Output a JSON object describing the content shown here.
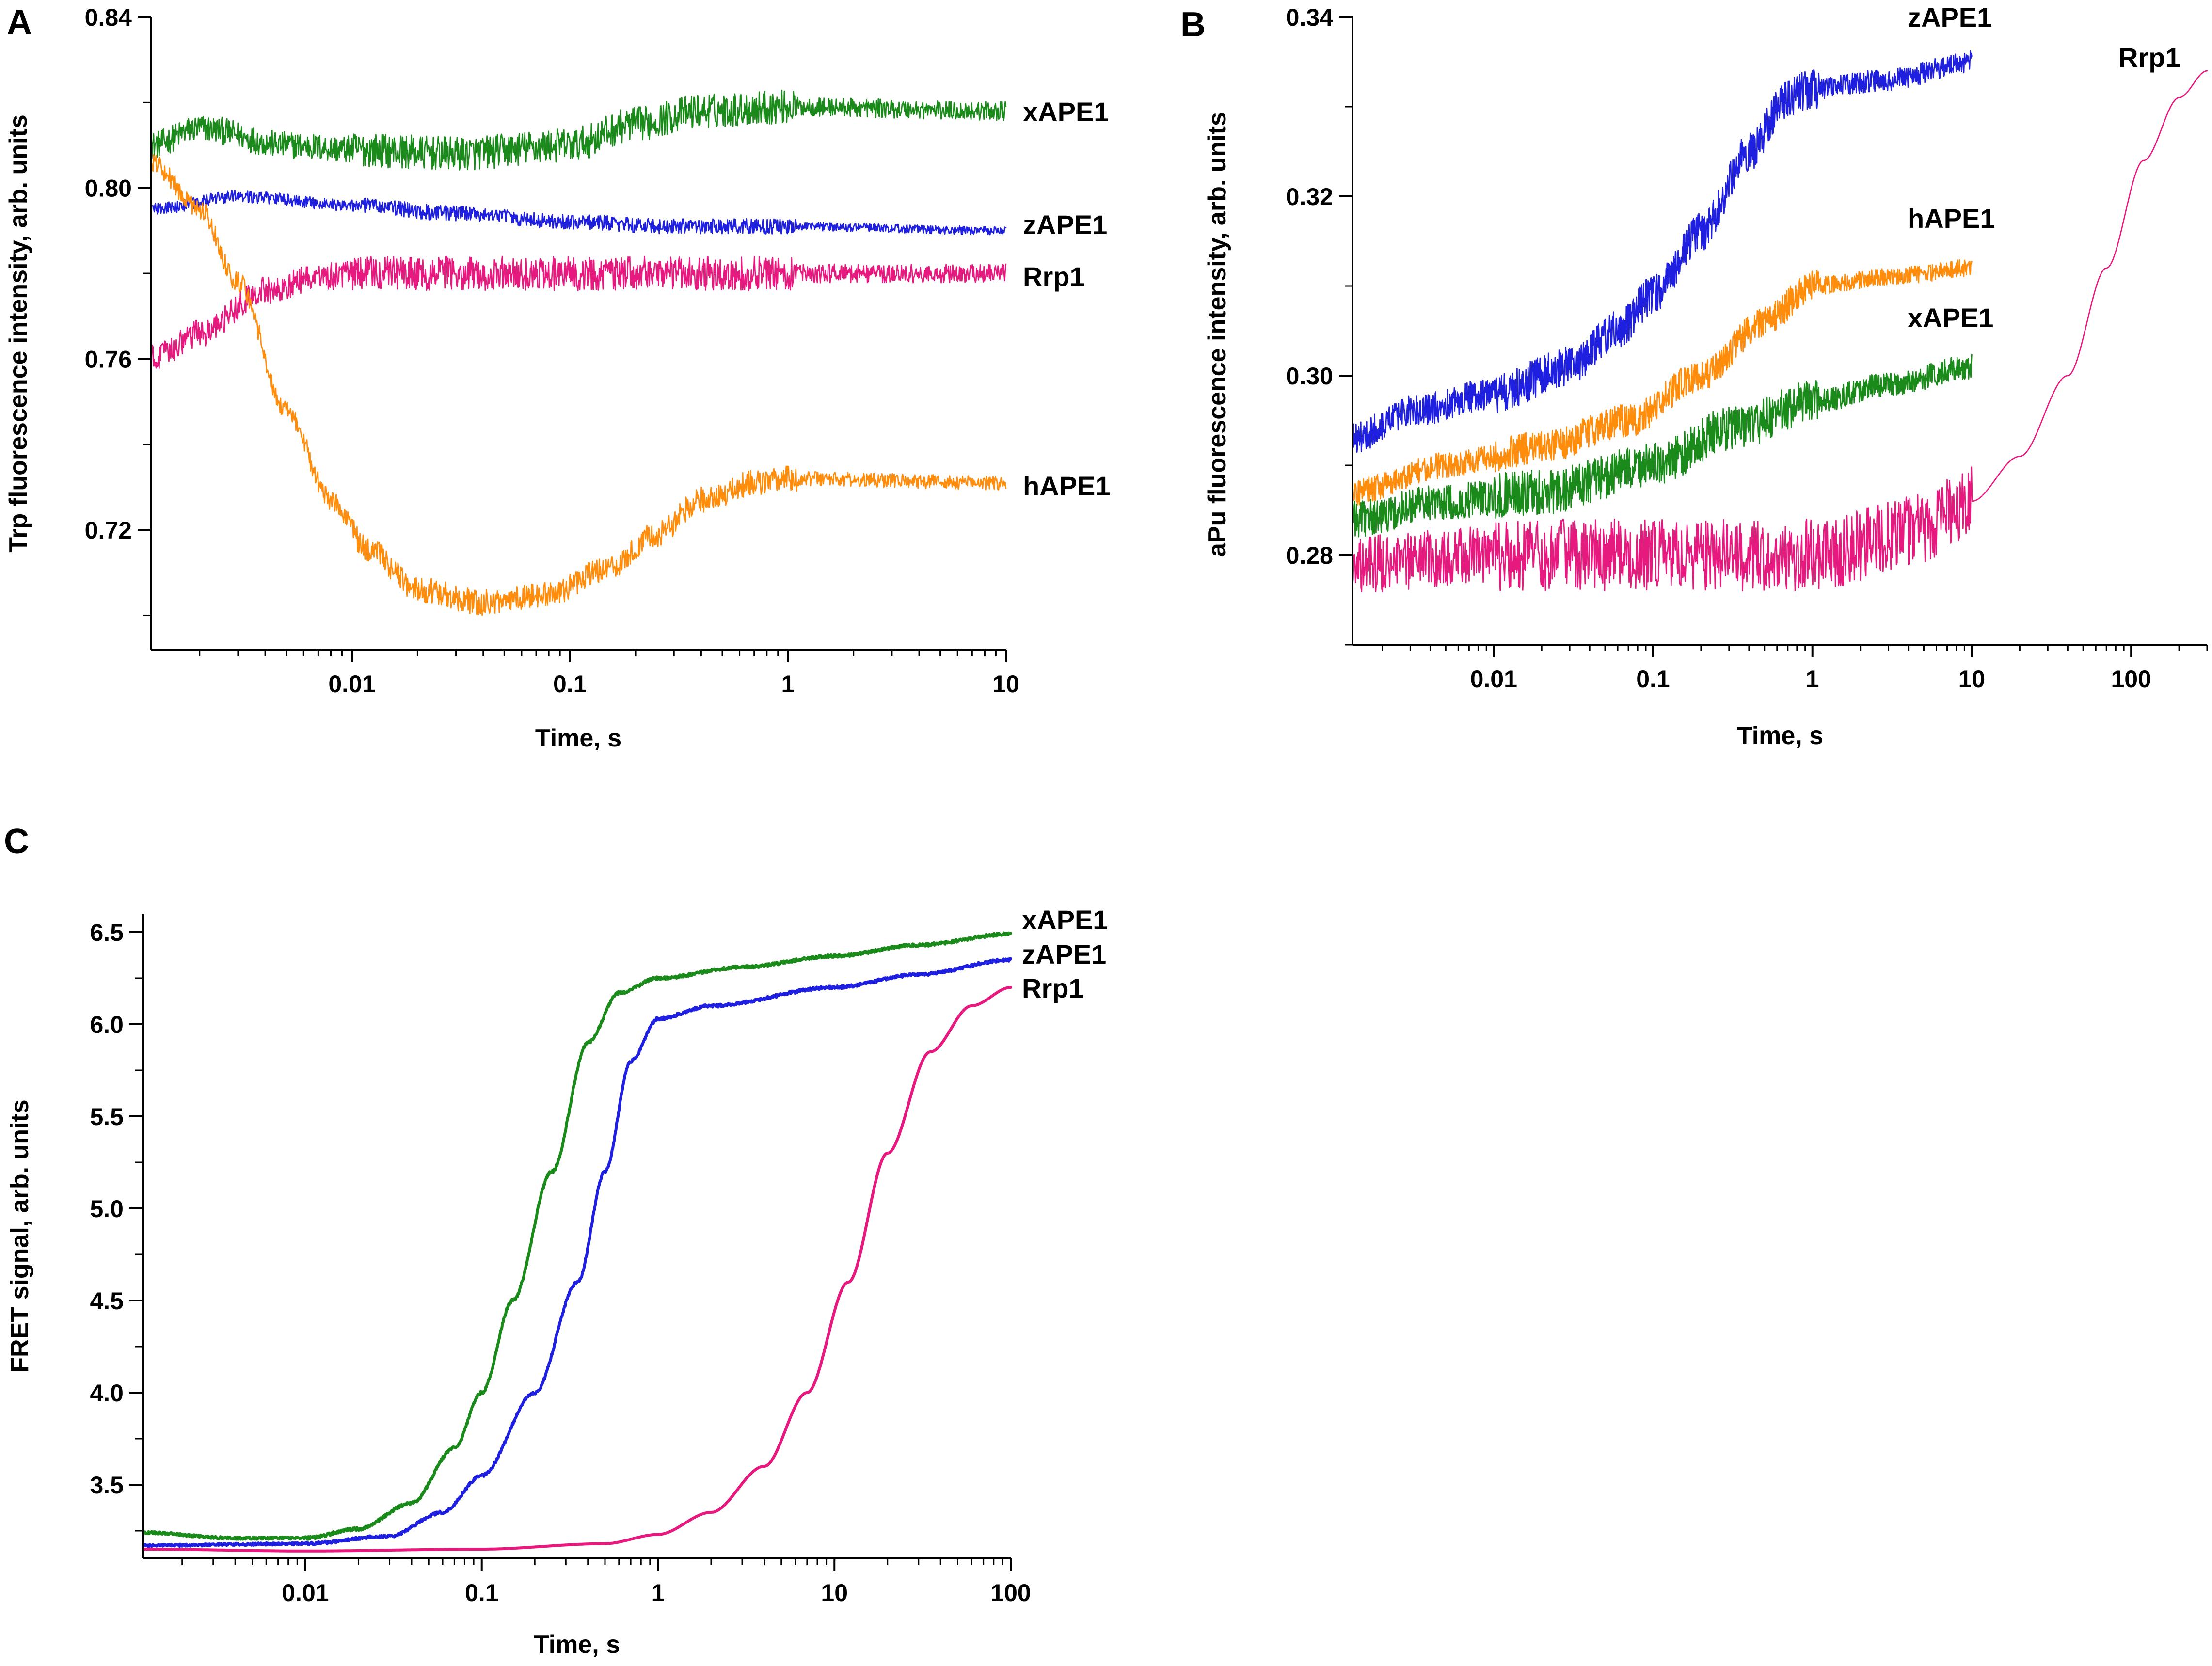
{
  "colors": {
    "xAPE1": "#1a8a1a",
    "zAPE1": "#1f1fe0",
    "Rrp1": "#e6197e",
    "hAPE1": "#ff8c0a"
  },
  "chart_data": [
    {
      "id": "A",
      "panel_label": "A",
      "type": "line",
      "xscale": "log",
      "xlabel": "Time, s",
      "ylabel": "Trp fluorescence intensity, arb. units",
      "xlim": [
        0.0012,
        10
      ],
      "ylim": [
        0.692,
        0.84
      ],
      "x_ticks": [
        0.01,
        0.1,
        1,
        10
      ],
      "x_tick_labels": [
        "0.01",
        "0.1",
        "1",
        "10"
      ],
      "y_ticks": [
        0.72,
        0.76,
        0.8,
        0.84
      ],
      "y_tick_labels": [
        "0.72",
        "0.76",
        "0.80",
        "0.84"
      ],
      "series": [
        {
          "name": "xAPE1",
          "label": "xAPE1",
          "color_key": "xAPE1",
          "noise": 0.004,
          "points": [
            [
              0.0012,
              0.81
            ],
            [
              0.002,
              0.814
            ],
            [
              0.005,
              0.81
            ],
            [
              0.01,
              0.809
            ],
            [
              0.03,
              0.808
            ],
            [
              0.1,
              0.81
            ],
            [
              0.2,
              0.815
            ],
            [
              0.4,
              0.818
            ],
            [
              1,
              0.819
            ],
            [
              10,
              0.818
            ]
          ]
        },
        {
          "name": "zAPE1",
          "label": "zAPE1",
          "color_key": "zAPE1",
          "noise": 0.0018,
          "points": [
            [
              0.0012,
              0.795
            ],
            [
              0.003,
              0.798
            ],
            [
              0.01,
              0.796
            ],
            [
              0.03,
              0.794
            ],
            [
              0.1,
              0.792
            ],
            [
              0.3,
              0.791
            ],
            [
              1,
              0.791
            ],
            [
              10,
              0.79
            ]
          ]
        },
        {
          "name": "Rrp1",
          "label": "Rrp1",
          "color_key": "Rrp1",
          "noise": 0.004,
          "points": [
            [
              0.0012,
              0.76
            ],
            [
              0.002,
              0.766
            ],
            [
              0.004,
              0.776
            ],
            [
              0.007,
              0.779
            ],
            [
              0.01,
              0.78
            ],
            [
              0.1,
              0.78
            ],
            [
              1,
              0.78
            ],
            [
              10,
              0.78
            ]
          ]
        },
        {
          "name": "hAPE1",
          "label": "hAPE1",
          "color_key": "hAPE1",
          "noise": 0.003,
          "points": [
            [
              0.0012,
              0.806
            ],
            [
              0.002,
              0.795
            ],
            [
              0.003,
              0.778
            ],
            [
              0.005,
              0.748
            ],
            [
              0.008,
              0.727
            ],
            [
              0.012,
              0.715
            ],
            [
              0.02,
              0.706
            ],
            [
              0.04,
              0.703
            ],
            [
              0.08,
              0.705
            ],
            [
              0.15,
              0.711
            ],
            [
              0.25,
              0.719
            ],
            [
              0.4,
              0.727
            ],
            [
              0.7,
              0.731
            ],
            [
              1,
              0.732
            ],
            [
              10,
              0.731
            ]
          ]
        }
      ]
    },
    {
      "id": "B",
      "panel_label": "B",
      "type": "line",
      "xscale": "log",
      "xlabel": "Time, s",
      "ylabel": "aPu fluorescence intensity, arb. units",
      "xlim": [
        0.0013,
        300
      ],
      "ylim": [
        0.27,
        0.34
      ],
      "x_ticks": [
        0.01,
        0.1,
        1,
        10,
        100
      ],
      "x_tick_labels": [
        "0.01",
        "0.1",
        "1",
        "10",
        "100"
      ],
      "y_ticks": [
        0.28,
        0.3,
        0.32,
        0.34
      ],
      "y_tick_labels": [
        "0.28",
        "0.30",
        "0.32",
        "0.34"
      ],
      "series": [
        {
          "name": "zAPE1",
          "label": "zAPE1",
          "color_key": "zAPE1",
          "noise": 0.0022,
          "points": [
            [
              0.0013,
              0.293
            ],
            [
              0.003,
              0.296
            ],
            [
              0.01,
              0.298
            ],
            [
              0.03,
              0.301
            ],
            [
              0.06,
              0.305
            ],
            [
              0.1,
              0.309
            ],
            [
              0.2,
              0.316
            ],
            [
              0.4,
              0.325
            ],
            [
              0.7,
              0.331
            ],
            [
              1,
              0.332
            ],
            [
              3,
              0.333
            ],
            [
              10,
              0.335
            ]
          ]
        },
        {
          "name": "hAPE1",
          "label": "hAPE1",
          "color_key": "hAPE1",
          "noise": 0.0018,
          "points": [
            [
              0.0013,
              0.287
            ],
            [
              0.005,
              0.29
            ],
            [
              0.02,
              0.292
            ],
            [
              0.07,
              0.295
            ],
            [
              0.2,
              0.3
            ],
            [
              0.5,
              0.306
            ],
            [
              1,
              0.31
            ],
            [
              3,
              0.311
            ],
            [
              10,
              0.312
            ]
          ]
        },
        {
          "name": "xAPE1",
          "label": "xAPE1",
          "color_key": "xAPE1",
          "noise": 0.0025,
          "points": [
            [
              0.0013,
              0.284
            ],
            [
              0.005,
              0.286
            ],
            [
              0.02,
              0.287
            ],
            [
              0.1,
              0.29
            ],
            [
              0.3,
              0.294
            ],
            [
              1,
              0.297
            ],
            [
              3,
              0.299
            ],
            [
              10,
              0.301
            ]
          ]
        },
        {
          "name": "Rrp1",
          "label": "Rrp1",
          "color_key": "Rrp1",
          "noise": 0.004,
          "points": [
            [
              0.0013,
              0.279
            ],
            [
              0.01,
              0.28
            ],
            [
              0.1,
              0.28
            ],
            [
              1,
              0.28
            ],
            [
              5,
              0.283
            ],
            [
              10,
              0.286
            ],
            [
              20,
              0.291
            ],
            [
              40,
              0.3
            ],
            [
              70,
              0.312
            ],
            [
              120,
              0.324
            ],
            [
              200,
              0.331
            ],
            [
              300,
              0.334
            ]
          ]
        }
      ]
    },
    {
      "id": "C",
      "panel_label": "C",
      "type": "line",
      "xscale": "log",
      "xlabel": "Time, s",
      "ylabel": "FRET signal, arb. units",
      "xlim": [
        0.0012,
        100
      ],
      "ylim": [
        3.1,
        6.6
      ],
      "x_ticks": [
        0.01,
        0.1,
        1,
        10,
        100
      ],
      "x_tick_labels": [
        "0.01",
        "0.1",
        "1",
        "10",
        "100"
      ],
      "y_ticks": [
        3.5,
        4.0,
        4.5,
        5.0,
        5.5,
        6.0,
        6.5
      ],
      "y_tick_labels": [
        "3.5",
        "4.0",
        "4.5",
        "5.0",
        "5.5",
        "6.0",
        "6.5"
      ],
      "series": [
        {
          "name": "xAPE1",
          "label": "xAPE1",
          "color_key": "xAPE1",
          "noise": 0.008,
          "points": [
            [
              0.0012,
              3.24
            ],
            [
              0.004,
              3.21
            ],
            [
              0.01,
              3.21
            ],
            [
              0.02,
              3.26
            ],
            [
              0.04,
              3.4
            ],
            [
              0.07,
              3.7
            ],
            [
              0.1,
              4.0
            ],
            [
              0.15,
              4.5
            ],
            [
              0.25,
              5.2
            ],
            [
              0.4,
              5.9
            ],
            [
              0.6,
              6.17
            ],
            [
              1,
              6.25
            ],
            [
              3,
              6.31
            ],
            [
              10,
              6.37
            ],
            [
              30,
              6.43
            ],
            [
              100,
              6.49
            ]
          ]
        },
        {
          "name": "zAPE1",
          "label": "zAPE1",
          "color_key": "zAPE1",
          "noise": 0.008,
          "points": [
            [
              0.0012,
              3.17
            ],
            [
              0.01,
              3.18
            ],
            [
              0.03,
              3.22
            ],
            [
              0.06,
              3.35
            ],
            [
              0.1,
              3.55
            ],
            [
              0.2,
              4.0
            ],
            [
              0.35,
              4.6
            ],
            [
              0.5,
              5.2
            ],
            [
              0.7,
              5.8
            ],
            [
              1,
              6.03
            ],
            [
              2,
              6.1
            ],
            [
              10,
              6.2
            ],
            [
              30,
              6.27
            ],
            [
              100,
              6.35
            ]
          ]
        },
        {
          "name": "Rrp1",
          "label": "Rrp1",
          "color_key": "Rrp1",
          "noise": 0,
          "points": [
            [
              0.0012,
              3.15
            ],
            [
              0.01,
              3.14
            ],
            [
              0.1,
              3.15
            ],
            [
              0.5,
              3.18
            ],
            [
              1,
              3.23
            ],
            [
              2,
              3.35
            ],
            [
              4,
              3.6
            ],
            [
              7,
              4.0
            ],
            [
              12,
              4.6
            ],
            [
              20,
              5.3
            ],
            [
              35,
              5.85
            ],
            [
              60,
              6.1
            ],
            [
              100,
              6.2
            ]
          ]
        }
      ]
    }
  ]
}
